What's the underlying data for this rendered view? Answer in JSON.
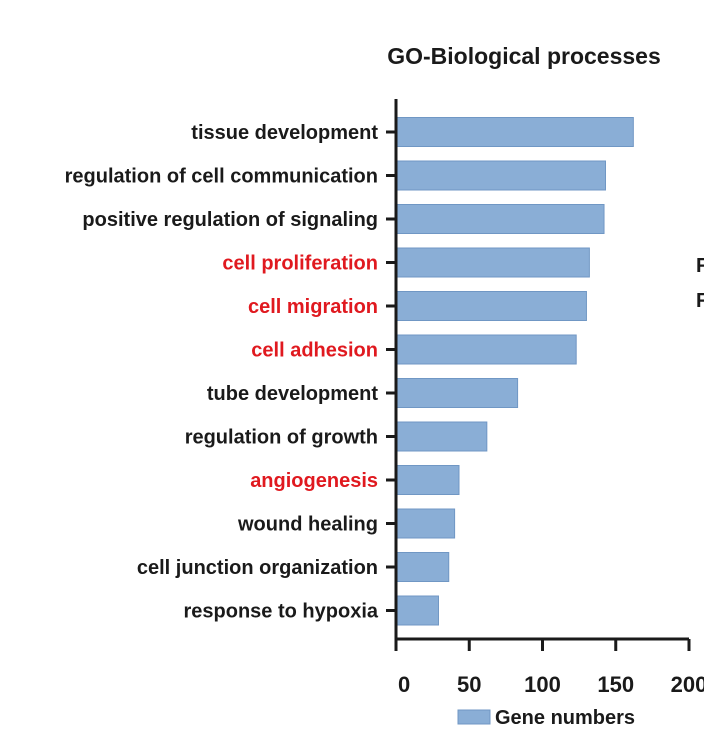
{
  "chart_data": {
    "type": "bar",
    "orientation": "horizontal",
    "title": "GO-Biological processes",
    "categories": [
      "tissue development",
      "regulation of cell communication",
      "positive regulation of signaling",
      "cell proliferation",
      "cell migration",
      "cell adhesion",
      "tube development",
      "regulation of growth",
      "angiogenesis",
      "wound healing",
      "cell junction organization",
      "response to hypoxia"
    ],
    "highlighted": [
      "cell proliferation",
      "cell migration",
      "cell adhesion",
      "angiogenesis"
    ],
    "series": [
      {
        "name": "Gene numbers",
        "values": [
          162,
          143,
          142,
          132,
          130,
          123,
          83,
          62,
          43,
          40,
          36,
          29
        ]
      }
    ],
    "xlim": [
      0,
      200
    ],
    "xticks": [
      0,
      50,
      100,
      150,
      200
    ],
    "tick_labels": [
      "0",
      "50",
      "100",
      "150",
      "200"
    ],
    "legend": {
      "position": "bottom-right",
      "label": "Gene numbers"
    },
    "grid": false
  },
  "colors": {
    "bar": "#8aaed6",
    "bar_edge": "#7097c4",
    "label_default": "#1a1a1a",
    "label_highlight": "#e0191f",
    "axis": "#1a1a1a"
  },
  "cutoff_text": [
    "F",
    "F"
  ]
}
